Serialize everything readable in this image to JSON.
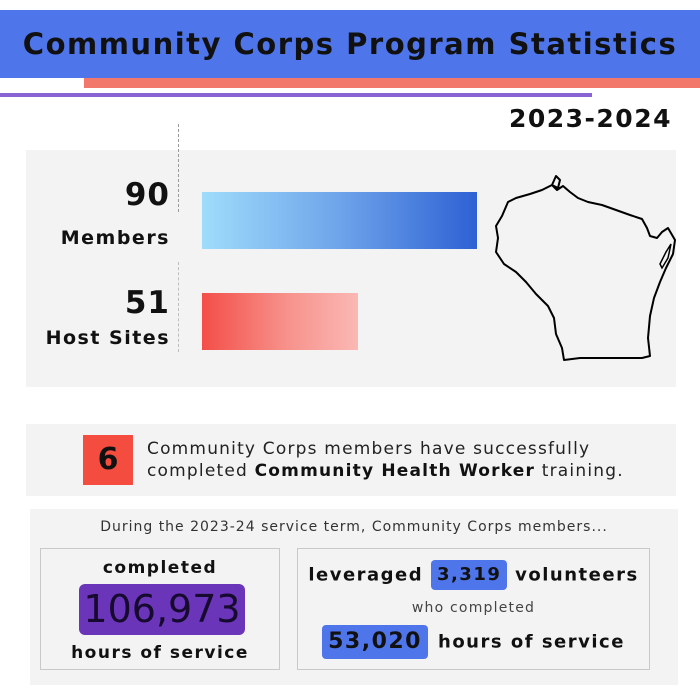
{
  "title": "Community Corps Program Statistics",
  "year": "2023-2024",
  "colors": {
    "header": "#4f75ea",
    "accent_coral": "#f2786c",
    "accent_purple": "#8a63d2",
    "members_bar": "#2e61d4",
    "sites_bar": "#f44e48",
    "hours_pill": "#6a35b8"
  },
  "icons": [
    "wisconsin-map-icon"
  ],
  "chart_data": {
    "type": "bar",
    "orientation": "horizontal",
    "categories": [
      "Members",
      "Host Sites"
    ],
    "values": [
      90,
      51
    ],
    "title": "",
    "xlabel": "",
    "ylabel": "",
    "grid": false,
    "legend": "none"
  },
  "cht": {
    "number": "6",
    "text_before": "Community Corps members have successfully completed ",
    "text_bold": "Community Health Worker",
    "text_after": " training."
  },
  "service": {
    "intro": "During the 2023-24 service term, Community Corps members...",
    "completed_label": "completed",
    "hours_value": "106,973",
    "hours_label": "hours of service",
    "leveraged_label": "leveraged",
    "volunteers_value": "3,319",
    "volunteers_label": "volunteers",
    "who_completed": "who completed",
    "volunteer_hours_value": "53,020",
    "volunteer_hours_label": "hours of service"
  }
}
